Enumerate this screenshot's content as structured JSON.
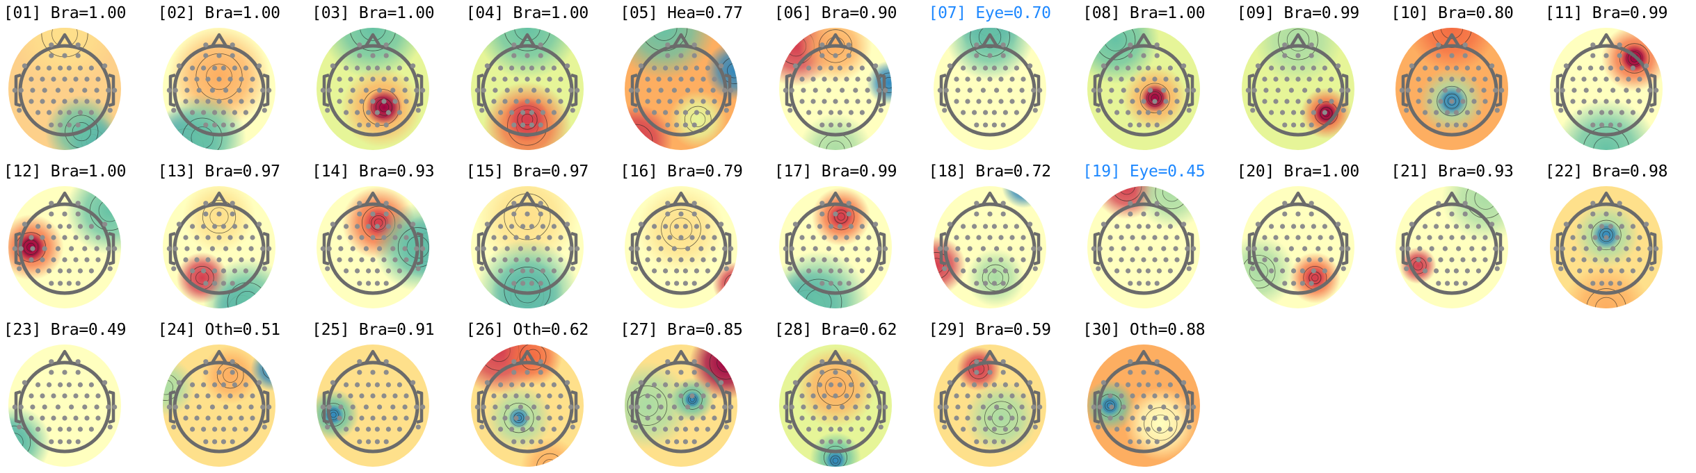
{
  "figure": {
    "highlight_color": "#1e88ff",
    "text_color": "#000000",
    "colormap": [
      "#9e0142",
      "#d53e4f",
      "#f46d43",
      "#fdae61",
      "#fee08b",
      "#ffffbf",
      "#e6f598",
      "#abdda4",
      "#66c2a5",
      "#3288bd",
      "#5e4fa2"
    ],
    "components": [
      {
        "title": "[01] Bra=1.00",
        "highlighted": false
      },
      {
        "title": "[02] Bra=1.00",
        "highlighted": false
      },
      {
        "title": "[03] Bra=1.00",
        "highlighted": false
      },
      {
        "title": "[04] Bra=1.00",
        "highlighted": false
      },
      {
        "title": "[05] Hea=0.77",
        "highlighted": false
      },
      {
        "title": "[06] Bra=0.90",
        "highlighted": false
      },
      {
        "title": "[07] Eye=0.70",
        "highlighted": true
      },
      {
        "title": "[08] Bra=1.00",
        "highlighted": false
      },
      {
        "title": "[09] Bra=0.99",
        "highlighted": false
      },
      {
        "title": "[10] Bra=0.80",
        "highlighted": false
      },
      {
        "title": "[11] Bra=0.99",
        "highlighted": false
      },
      {
        "title": "[12] Bra=1.00",
        "highlighted": false
      },
      {
        "title": "[13] Bra=0.97",
        "highlighted": false
      },
      {
        "title": "[14] Bra=0.93",
        "highlighted": false
      },
      {
        "title": "[15] Bra=0.97",
        "highlighted": false
      },
      {
        "title": "[16] Bra=0.79",
        "highlighted": false
      },
      {
        "title": "[17] Bra=0.99",
        "highlighted": false
      },
      {
        "title": "[18] Bra=0.72",
        "highlighted": false
      },
      {
        "title": "[19] Eye=0.45",
        "highlighted": true
      },
      {
        "title": "[20] Bra=1.00",
        "highlighted": false
      },
      {
        "title": "[21] Bra=0.93",
        "highlighted": false
      },
      {
        "title": "[22] Bra=0.98",
        "highlighted": false
      },
      {
        "title": "[23] Bra=0.49",
        "highlighted": false
      },
      {
        "title": "[24] Oth=0.51",
        "highlighted": false
      },
      {
        "title": "[25] Bra=0.91",
        "highlighted": false
      },
      {
        "title": "[26] Oth=0.62",
        "highlighted": false
      },
      {
        "title": "[27] Bra=0.85",
        "highlighted": false
      },
      {
        "title": "[28] Bra=0.62",
        "highlighted": false
      },
      {
        "title": "[29] Bra=0.59",
        "highlighted": false
      },
      {
        "title": "[30] Oth=0.88",
        "highlighted": false
      }
    ]
  }
}
